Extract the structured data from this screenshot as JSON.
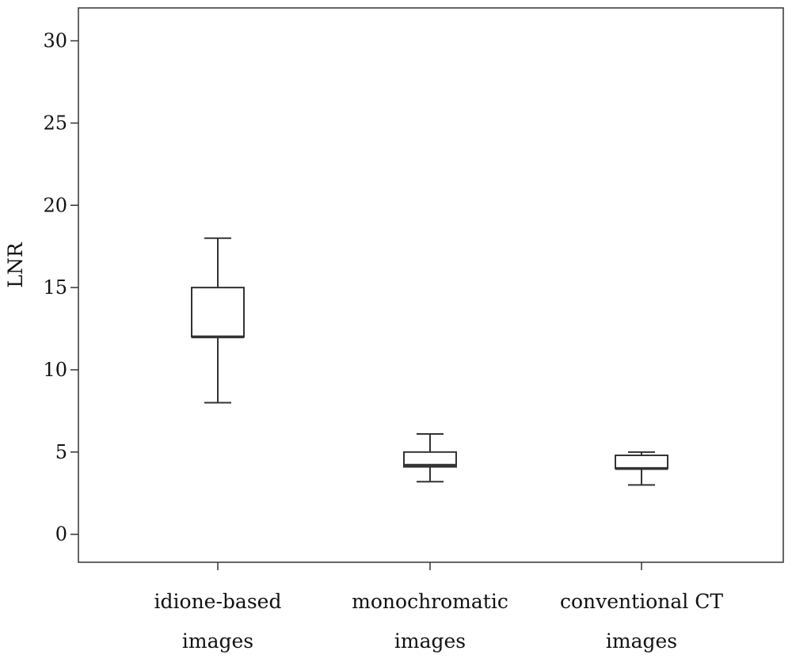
{
  "chart_data": {
    "type": "box",
    "title": "",
    "xlabel": "",
    "ylabel": "LNR",
    "ylim": [
      -1.7,
      32
    ],
    "y_ticks": [
      "0",
      "5",
      "10",
      "15",
      "20",
      "25",
      "30"
    ],
    "y_tick_values": [
      0,
      5,
      10,
      15,
      20,
      25,
      30
    ],
    "grid": false,
    "legend": "none",
    "categories": [
      [
        "idione-based",
        "images"
      ],
      [
        "monochromatic",
        "images"
      ],
      [
        "conventional CT",
        "images"
      ]
    ],
    "boxes": [
      {
        "whisker_low": 8,
        "q1": 12,
        "median": 12,
        "q3": 15,
        "whisker_high": 18
      },
      {
        "whisker_low": 3.2,
        "q1": 4.1,
        "median": 4.2,
        "q3": 5.0,
        "whisker_high": 6.1
      },
      {
        "whisker_low": 3.0,
        "q1": 4.0,
        "median": 4.0,
        "q3": 4.8,
        "whisker_high": 5.0
      }
    ],
    "colors": {
      "stroke": "#333333",
      "box_fill": "#ffffff",
      "text": "#111111"
    }
  }
}
